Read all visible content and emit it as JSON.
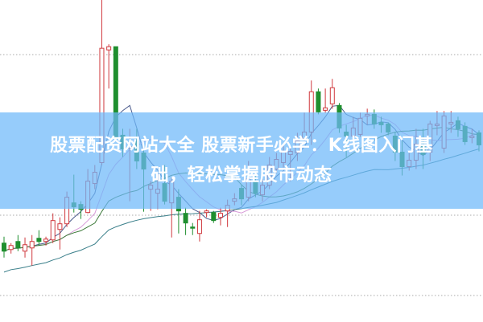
{
  "title": {
    "line1": "股票配资网站大全 股票新手必学：K线图入门基",
    "line2": "础，轻松掌握股市动态"
  },
  "colors": {
    "up": "#d0393e",
    "down": "#1f8f2f",
    "banner": "#8ec8f8",
    "ma_lines": [
      "#4a5a8c",
      "#d89ad8",
      "#3d7a3a",
      "#3a7f8a"
    ],
    "grid": "#aaaaaa"
  },
  "chart_data": {
    "type": "candlestick",
    "title": "",
    "xlabel": "",
    "ylabel": "",
    "ylim": [
      0,
      400
    ],
    "grid": true,
    "moving_averages": [
      5,
      10,
      20,
      40
    ],
    "candles": [
      [
        98,
        106,
        80,
        88
      ],
      [
        90,
        98,
        85,
        95
      ],
      [
        100,
        108,
        88,
        92
      ],
      [
        88,
        105,
        80,
        96
      ],
      [
        92,
        108,
        70,
        100
      ],
      [
        104,
        114,
        95,
        100
      ],
      [
        100,
        106,
        95,
        103
      ],
      [
        102,
        135,
        98,
        126
      ],
      [
        115,
        130,
        90,
        122
      ],
      [
        122,
        162,
        118,
        155
      ],
      [
        148,
        183,
        136,
        143
      ],
      [
        146,
        150,
        128,
        140
      ],
      [
        136,
        190,
        135,
        175
      ],
      [
        172,
        195,
        165,
        186
      ],
      [
        198,
        401,
        195,
        340
      ],
      [
        338,
        345,
        290,
        342
      ],
      [
        342,
        342,
        225,
        230
      ],
      [
        232,
        240,
        205,
        215
      ],
      [
        216,
        240,
        150,
        218
      ],
      [
        225,
        240,
        190,
        200
      ],
      [
        210,
        215,
        137,
        190
      ],
      [
        165,
        175,
        138,
        170
      ],
      [
        160,
        185,
        140,
        165
      ],
      [
        172,
        195,
        146,
        150
      ],
      [
        148,
        180,
        105,
        175
      ],
      [
        155,
        165,
        110,
        138
      ],
      [
        135,
        142,
        108,
        123
      ],
      [
        118,
        123,
        108,
        117
      ],
      [
        110,
        138,
        100,
        127
      ],
      [
        136,
        140,
        130,
        138
      ],
      [
        136,
        138,
        123,
        126
      ],
      [
        130,
        142,
        120,
        135
      ],
      [
        138,
        152,
        118,
        145
      ],
      [
        150,
        160,
        145,
        153
      ],
      [
        166,
        170,
        145,
        153
      ],
      [
        155,
        200,
        150,
        178
      ],
      [
        175,
        182,
        155,
        160
      ],
      [
        158,
        178,
        150,
        170
      ],
      [
        170,
        205,
        165,
        195
      ],
      [
        190,
        210,
        185,
        202
      ],
      [
        198,
        222,
        192,
        212
      ],
      [
        208,
        218,
        175,
        212
      ],
      [
        210,
        235,
        200,
        225
      ],
      [
        228,
        260,
        225,
        236
      ],
      [
        236,
        300,
        220,
        286
      ],
      [
        286,
        290,
        258,
        261
      ],
      [
        263,
        290,
        260,
        266
      ],
      [
        271,
        302,
        265,
        291
      ],
      [
        269,
        272,
        235,
        241
      ],
      [
        236,
        245,
        205,
        231
      ],
      [
        231,
        255,
        220,
        241
      ],
      [
        233,
        260,
        230,
        253
      ],
      [
        256,
        265,
        245,
        258
      ],
      [
        258,
        264,
        240,
        246
      ],
      [
        248,
        255,
        235,
        245
      ],
      [
        246,
        248,
        232,
        236
      ],
      [
        231,
        236,
        200,
        211
      ],
      [
        211,
        225,
        182,
        193
      ],
      [
        193,
        210,
        188,
        201
      ],
      [
        201,
        240,
        190,
        221
      ],
      [
        218,
        240,
        190,
        208
      ],
      [
        211,
        250,
        200,
        246
      ],
      [
        244,
        262,
        232,
        246
      ],
      [
        216,
        262,
        210,
        256
      ],
      [
        246,
        262,
        235,
        248
      ],
      [
        250,
        255,
        230,
        240
      ],
      [
        243,
        248,
        220,
        224
      ],
      [
        229,
        240,
        222,
        231
      ],
      [
        235,
        238,
        212,
        220
      ]
    ]
  }
}
